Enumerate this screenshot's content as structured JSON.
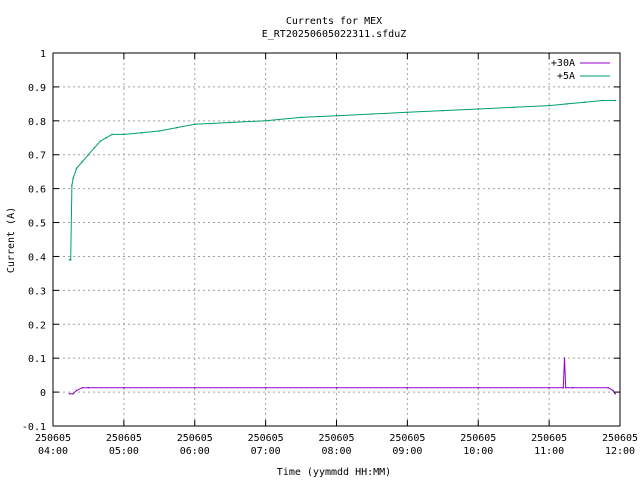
{
  "chart_data": {
    "type": "line",
    "title": "Currents for MEX",
    "subtitle": "E_RT20250605022311.sfduZ",
    "xlabel": "Time (yymmdd HH:MM)",
    "ylabel": "Current (A)",
    "xlim": [
      "250605 04:00",
      "250605 12:00"
    ],
    "ylim": [
      -0.1,
      1
    ],
    "grid": true,
    "legend_position": "top-right",
    "x_ticks": [
      {
        "date": "250605",
        "time": "04:00"
      },
      {
        "date": "250605",
        "time": "05:00"
      },
      {
        "date": "250605",
        "time": "06:00"
      },
      {
        "date": "250605",
        "time": "07:00"
      },
      {
        "date": "250605",
        "time": "08:00"
      },
      {
        "date": "250605",
        "time": "09:00"
      },
      {
        "date": "250605",
        "time": "10:00"
      },
      {
        "date": "250605",
        "time": "11:00"
      },
      {
        "date": "250605",
        "time": "12:00"
      }
    ],
    "y_ticks": [
      "-0.1",
      "0",
      "0.1",
      "0.2",
      "0.3",
      "0.4",
      "0.5",
      "0.6",
      "0.7",
      "0.8",
      "0.9",
      "1"
    ],
    "series": [
      {
        "name": "+30A",
        "color": "#9400d3",
        "x": [
          "04:14",
          "04:17",
          "04:20",
          "04:25",
          "04:30",
          "05:00",
          "06:00",
          "07:00",
          "08:00",
          "09:00",
          "10:00",
          "11:00",
          "11:12",
          "11:13",
          "11:14",
          "11:20",
          "11:50",
          "11:54",
          "11:56"
        ],
        "y": [
          -0.005,
          -0.005,
          0.005,
          0.013,
          0.013,
          0.013,
          0.013,
          0.013,
          0.013,
          0.013,
          0.013,
          0.013,
          0.013,
          0.1,
          0.013,
          0.013,
          0.013,
          0.005,
          -0.005
        ]
      },
      {
        "name": "+5A",
        "color": "#009e73",
        "x": [
          "04:14",
          "04:15",
          "04:16",
          "04:17",
          "04:20",
          "04:25",
          "04:30",
          "04:35",
          "04:40",
          "04:45",
          "04:50",
          "05:00",
          "05:15",
          "05:30",
          "05:45",
          "06:00",
          "06:30",
          "07:00",
          "07:30",
          "08:00",
          "08:30",
          "09:00",
          "09:30",
          "10:00",
          "10:30",
          "11:00",
          "11:15",
          "11:30",
          "11:45",
          "11:56"
        ],
        "y": [
          0.39,
          0.39,
          0.61,
          0.63,
          0.66,
          0.68,
          0.7,
          0.72,
          0.74,
          0.75,
          0.76,
          0.76,
          0.765,
          0.77,
          0.78,
          0.79,
          0.795,
          0.8,
          0.81,
          0.815,
          0.82,
          0.825,
          0.83,
          0.835,
          0.84,
          0.845,
          0.85,
          0.855,
          0.86,
          0.86
        ]
      }
    ]
  }
}
